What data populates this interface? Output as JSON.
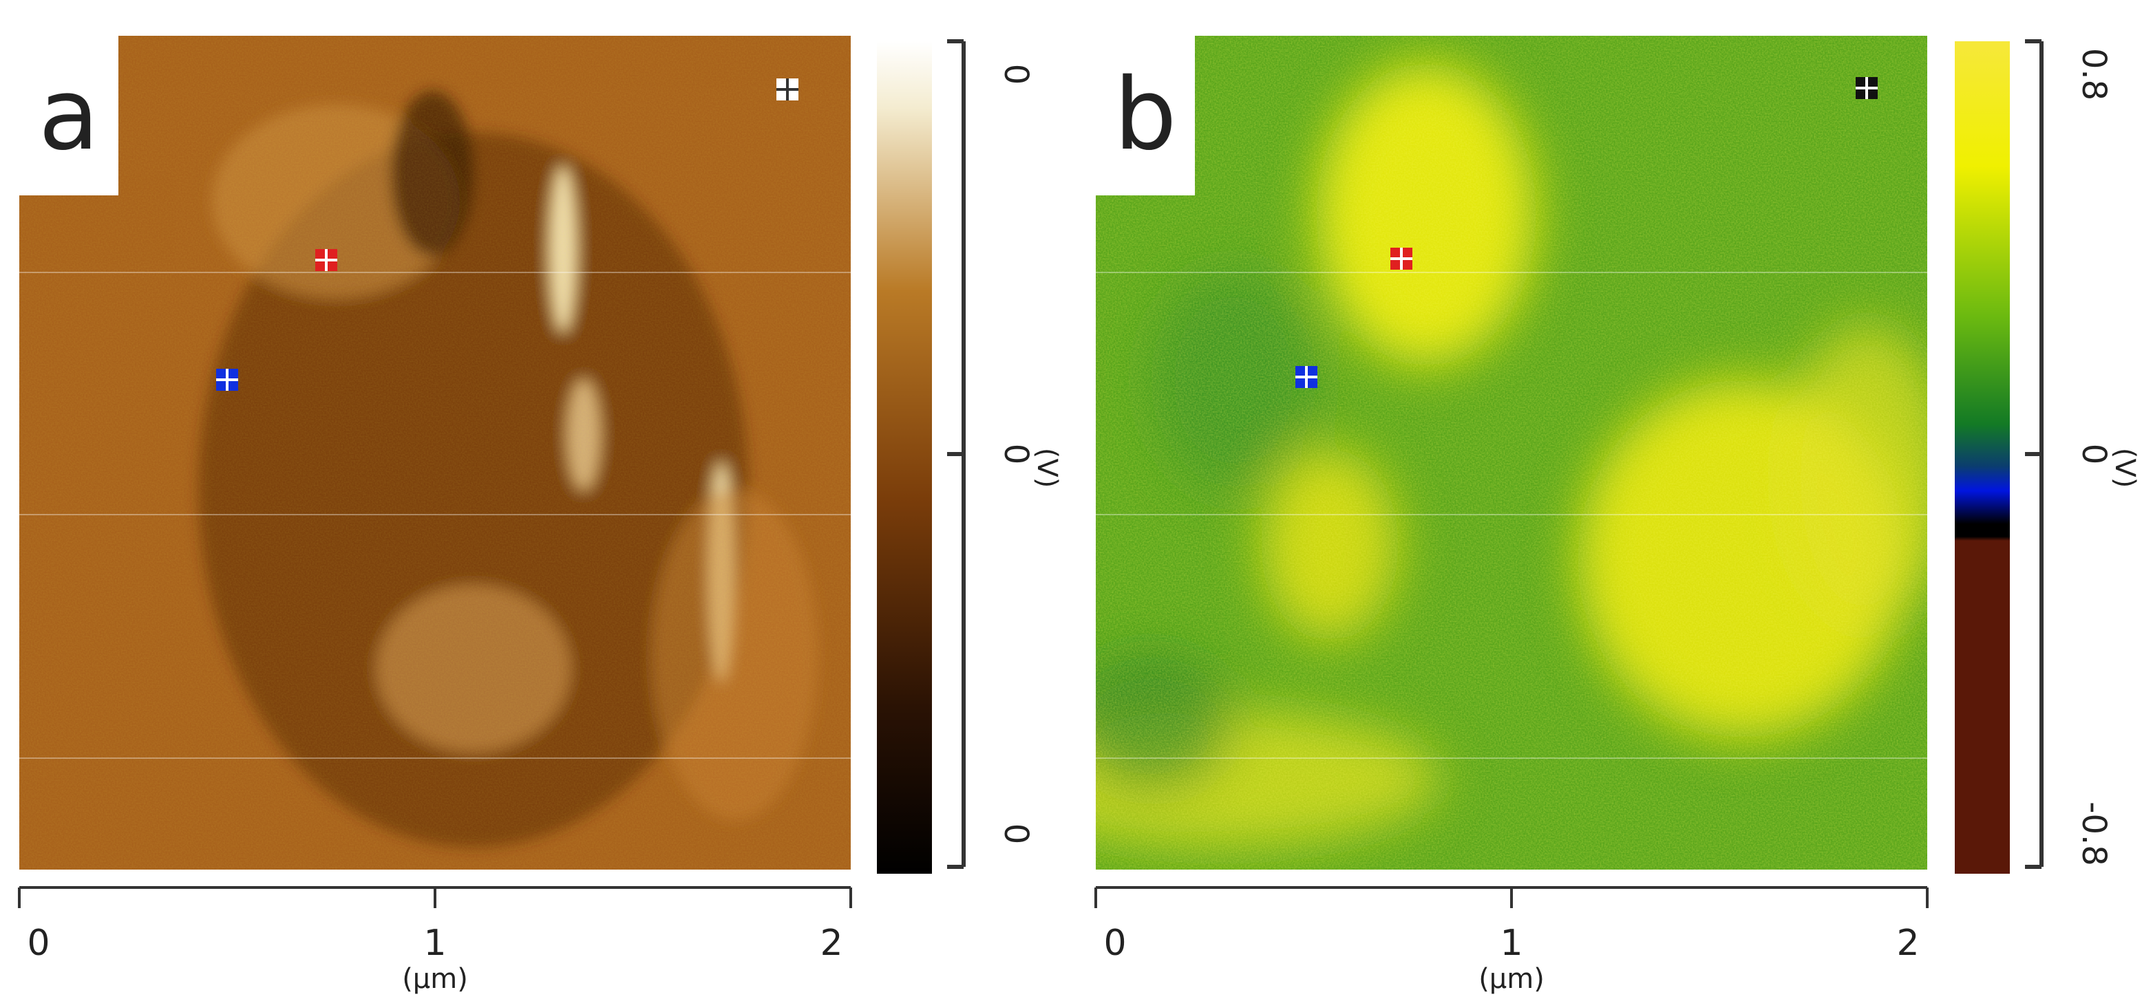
{
  "panels": [
    {
      "label": "a",
      "x_axis": {
        "ticks": [
          "0",
          "1",
          "2"
        ],
        "unit": "(µm)"
      },
      "colorbar": {
        "ticks": [
          "0",
          "0",
          "0"
        ],
        "unit": "(V)"
      }
    },
    {
      "label": "b",
      "x_axis": {
        "ticks": [
          "0",
          "1",
          "2"
        ],
        "unit": "(µm)"
      },
      "colorbar": {
        "ticks": [
          "0.8",
          "0",
          "-0.8"
        ],
        "unit": "(V)"
      }
    }
  ]
}
